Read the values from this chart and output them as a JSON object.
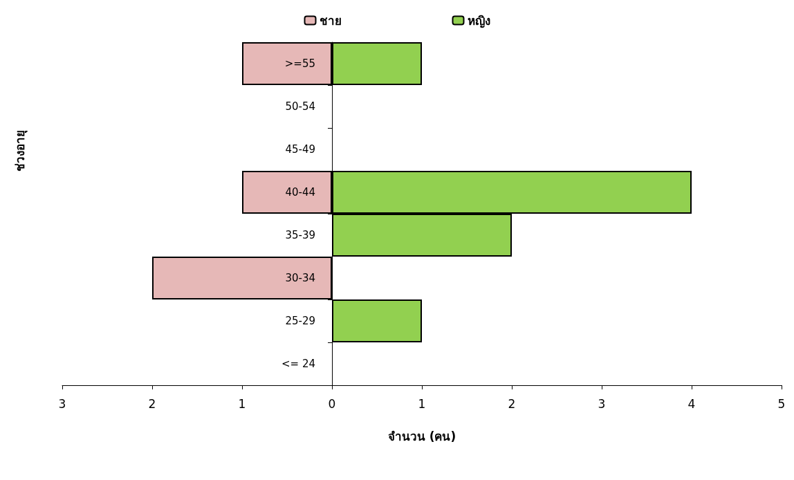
{
  "chart_data": {
    "type": "bar",
    "orientation": "horizontal",
    "stacked": true,
    "xlabel": "จำนวน (คน)",
    "annotations": [
      "ช่วงอายุ"
    ],
    "categories": [
      ">=55",
      "50-54",
      "45-49",
      "40-44",
      "35-39",
      "30-34",
      "25-29",
      "<= 24"
    ],
    "series": [
      {
        "name": "ชาย",
        "color": "#e6b8b7",
        "values": [
          -1,
          0,
          0,
          -1,
          0,
          -2,
          0,
          0
        ]
      },
      {
        "name": "หญิง",
        "color": "#92d050",
        "values": [
          1,
          0,
          0,
          4,
          2,
          0,
          1,
          0
        ]
      }
    ],
    "xlim": [
      -3,
      5
    ],
    "xticks": [
      {
        "value": -3,
        "label": "3"
      },
      {
        "value": -2,
        "label": "2"
      },
      {
        "value": -1,
        "label": "1"
      },
      0,
      1,
      2,
      3,
      4,
      5
    ],
    "grid": false,
    "legend": "top"
  }
}
